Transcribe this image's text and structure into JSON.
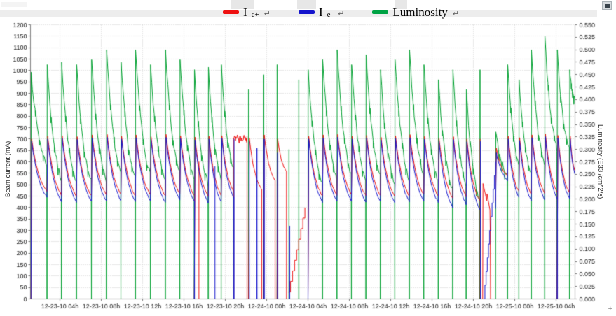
{
  "window": {
    "trailing_mark": "+"
  },
  "legend": {
    "return_mark": "↵",
    "items": [
      {
        "base": "I",
        "sub": "e+",
        "color": "#ee1111"
      },
      {
        "base": "I",
        "sub": "e-",
        "color": "#1414cc"
      },
      {
        "base": "Luminosity",
        "sub": "",
        "color": "#00a344"
      }
    ]
  },
  "chart_data": {
    "type": "line",
    "title": "",
    "grid": true,
    "legend_position": "top-center",
    "x_axis": {
      "label": "",
      "epoch": "12-23-10 00h",
      "domain_hours": [
        1.15,
        53.83
      ],
      "tick_hours": [
        4,
        8,
        12,
        16,
        20,
        24,
        28,
        32,
        36,
        40,
        44,
        48,
        52
      ],
      "tick_labels": [
        "12-23-10 04h",
        "12-23-10 08h",
        "12-23-10 12h",
        "12-23-10 16h",
        "12-23-10 20h",
        "12-24-10 00h",
        "12-24-10 04h",
        "12-24-10 08h",
        "12-24-10 12h",
        "12-24-10 16h",
        "12-24-10 20h",
        "12-25-10 00h",
        "12-25-10 04h"
      ]
    },
    "y_left": {
      "label": "Beam current (mA)",
      "min": 0,
      "max": 1200,
      "step": 50
    },
    "y_right": {
      "label": "Luminosity (E33 /cm^2/s)",
      "min": 0,
      "max": 0.55,
      "step": 0.025
    },
    "series": [
      {
        "key": "iep",
        "name": "I e+",
        "color": "#ee1111",
        "axis": "left"
      },
      {
        "key": "iem",
        "name": "I e-",
        "color": "#1414cc",
        "axis": "left"
      },
      {
        "key": "lum",
        "name": "Luminosity",
        "color": "#00a030",
        "axis": "right"
      }
    ],
    "fills": [
      {
        "t0": 1.2,
        "t1": 2.75,
        "lum": [
          0.455,
          0.27
        ],
        "iep": [
          700,
          470
        ],
        "iem": [
          690,
          445
        ]
      },
      {
        "t0": 2.75,
        "t1": 4.15,
        "lum": [
          0.47,
          0.24
        ],
        "iep": [
          712,
          455
        ],
        "iem": [
          700,
          428
        ]
      },
      {
        "t0": 4.15,
        "t1": 5.6,
        "lum": [
          0.475,
          0.23
        ],
        "iep": [
          715,
          450
        ],
        "iem": [
          703,
          425
        ]
      },
      {
        "t0": 5.6,
        "t1": 7.05,
        "lum": [
          0.47,
          0.235
        ],
        "iep": [
          710,
          452
        ],
        "iem": [
          698,
          427
        ]
      },
      {
        "t0": 7.05,
        "t1": 8.5,
        "lum": [
          0.48,
          0.24
        ],
        "iep": [
          718,
          455
        ],
        "iem": [
          705,
          430
        ]
      },
      {
        "t0": 8.5,
        "t1": 9.9,
        "lum": [
          0.5,
          0.25
        ],
        "iep": [
          720,
          460
        ],
        "iem": [
          708,
          432
        ]
      },
      {
        "t0": 9.9,
        "t1": 11.3,
        "lum": [
          0.475,
          0.24
        ],
        "iep": [
          712,
          452
        ],
        "iem": [
          700,
          426
        ]
      },
      {
        "t0": 11.3,
        "t1": 12.75,
        "lum": [
          0.5,
          0.25
        ],
        "iep": [
          718,
          458
        ],
        "iem": [
          706,
          430
        ]
      },
      {
        "t0": 12.75,
        "t1": 14.2,
        "lum": [
          0.47,
          0.235
        ],
        "iep": [
          710,
          450
        ],
        "iem": [
          698,
          424
        ]
      },
      {
        "t0": 14.2,
        "t1": 15.6,
        "lum": [
          0.5,
          0.25
        ],
        "iep": [
          720,
          460
        ],
        "iem": [
          707,
          433
        ]
      },
      {
        "t0": 15.6,
        "t1": 17.0,
        "lum": [
          0.48,
          0.24
        ],
        "iep": [
          714,
          454
        ],
        "iem": [
          702,
          428
        ]
      },
      {
        "t0": 17.0,
        "t1": 18.35,
        "lum": [
          0.46,
          0.23
        ],
        "iep": [
          708,
          448
        ],
        "iem": [
          696,
          422
        ],
        "izero": true
      },
      {
        "t0": 18.35,
        "t1": 19.6,
        "lum": [
          0.465,
          0.24
        ],
        "iep": [
          712,
          452
        ],
        "iem": [
          700,
          426
        ]
      },
      {
        "t0": 19.6,
        "t1": 20.8,
        "lum": [
          0.47,
          0.26
        ],
        "iep": [
          715,
          470
        ],
        "iem": [
          703,
          445
        ]
      },
      {
        "t0": 22.25,
        "t1": 23.5,
        "lum": null,
        "iep": [
          705,
          480
        ],
        "iem": null,
        "izero": true
      },
      {
        "t0": 23.7,
        "t1": 24.8,
        "lum": null,
        "iep": [
          718,
          520
        ],
        "iem": null,
        "izero": true
      },
      {
        "t0": 25.0,
        "t1": 25.9,
        "lum": null,
        "iep": [
          700,
          560
        ],
        "iem": null,
        "izero": true
      },
      {
        "t0": 28.0,
        "t1": 29.4,
        "lum": [
          0.46,
          0.23
        ],
        "iep": [
          712,
          450
        ],
        "iem": [
          700,
          424
        ],
        "izero": true
      },
      {
        "t0": 29.4,
        "t1": 30.8,
        "lum": [
          0.48,
          0.24
        ],
        "iep": [
          718,
          455
        ],
        "iem": [
          705,
          428
        ]
      },
      {
        "t0": 30.8,
        "t1": 32.2,
        "lum": [
          0.5,
          0.25
        ],
        "iep": [
          720,
          458
        ],
        "iem": [
          708,
          430
        ]
      },
      {
        "t0": 32.2,
        "t1": 33.6,
        "lum": [
          0.47,
          0.235
        ],
        "iep": [
          712,
          452
        ],
        "iem": [
          700,
          425
        ]
      },
      {
        "t0": 33.6,
        "t1": 35.0,
        "lum": [
          0.49,
          0.245
        ],
        "iep": [
          716,
          455
        ],
        "iem": [
          704,
          428
        ]
      },
      {
        "t0": 35.0,
        "t1": 36.4,
        "lum": [
          0.46,
          0.23
        ],
        "iep": [
          708,
          448
        ],
        "iem": [
          696,
          420
        ]
      },
      {
        "t0": 36.4,
        "t1": 37.8,
        "lum": [
          0.48,
          0.24
        ],
        "iep": [
          714,
          452
        ],
        "iem": [
          702,
          425
        ]
      },
      {
        "t0": 37.8,
        "t1": 39.2,
        "lum": [
          0.5,
          0.25
        ],
        "iep": [
          719,
          458
        ],
        "iem": [
          706,
          428
        ]
      },
      {
        "t0": 39.2,
        "t1": 40.6,
        "lum": [
          0.47,
          0.235
        ],
        "iep": [
          711,
          450
        ],
        "iem": [
          699,
          422
        ]
      },
      {
        "t0": 40.6,
        "t1": 42.0,
        "lum": [
          0.44,
          0.22
        ],
        "iep": [
          705,
          442
        ],
        "iem": [
          693,
          400
        ]
      },
      {
        "t0": 42.0,
        "t1": 43.3,
        "lum": [
          0.46,
          0.23
        ],
        "iep": [
          710,
          448
        ],
        "iem": [
          698,
          415
        ]
      },
      {
        "t0": 43.3,
        "t1": 44.6,
        "lum": [
          0.42,
          0.2
        ],
        "iep": [
          700,
          430
        ],
        "iem": [
          688,
          395
        ]
      },
      {
        "t0": 46.15,
        "t1": 47.3,
        "lum": [
          0.335,
          0.25
        ],
        "iep": [
          660,
          540
        ],
        "iem": [
          640,
          520
        ]
      },
      {
        "t0": 47.3,
        "t1": 48.4,
        "lum": [
          0.47,
          0.27
        ],
        "iep": [
          712,
          470
        ],
        "iem": [
          700,
          445
        ]
      },
      {
        "t0": 48.4,
        "t1": 49.6,
        "lum": [
          0.44,
          0.25
        ],
        "iep": [
          706,
          460
        ],
        "iem": [
          694,
          430
        ]
      },
      {
        "t0": 49.6,
        "t1": 50.9,
        "lum": [
          0.5,
          0.27
        ],
        "iep": [
          718,
          462
        ],
        "iem": [
          706,
          435
        ]
      },
      {
        "t0": 50.9,
        "t1": 52.1,
        "lum": [
          0.527,
          0.3
        ],
        "iep": [
          722,
          470
        ],
        "iem": [
          710,
          440
        ]
      },
      {
        "t0": 52.1,
        "t1": 53.3,
        "lum": [
          0.5,
          0.3
        ],
        "iep": [
          716,
          465
        ],
        "iem": [
          704,
          438
        ],
        "izero": true
      },
      {
        "t0": 53.3,
        "t1": 53.83,
        "lum": [
          0.46,
          0.4
        ],
        "iep": [
          712,
          560
        ],
        "iem": [
          700,
          548
        ],
        "open": true
      }
    ],
    "extras": [
      {
        "type": "vline",
        "series": "iep",
        "t": 17.45,
        "v0": 0,
        "v1": 600
      },
      {
        "type": "vline",
        "series": "iem",
        "t": 19.0,
        "v0": 0,
        "v1": 580
      },
      {
        "type": "hold",
        "series": "iep",
        "t0": 20.8,
        "t1": 22.1,
        "v": 700,
        "v0": 470,
        "noise": 18
      },
      {
        "type": "vline",
        "series": "iep",
        "t": 22.1,
        "v0": 0,
        "v1": 712
      },
      {
        "type": "vline",
        "series": "iem",
        "t": 20.85,
        "v0": 0,
        "v1": 700
      },
      {
        "type": "spike",
        "series": "lum",
        "t": 22.25,
        "v": 0.42
      },
      {
        "type": "spike",
        "series": "lum",
        "t": 23.7,
        "v": 0.45
      },
      {
        "type": "spike",
        "series": "lum",
        "t": 25.0,
        "v": 0.47
      },
      {
        "type": "spike",
        "series": "lum",
        "t": 26.15,
        "v": 0.3
      },
      {
        "type": "spike",
        "series": "lum",
        "t": 27.1,
        "v": 0.44
      },
      {
        "type": "spike",
        "series": "iem",
        "t": 22.3,
        "v": 690
      },
      {
        "type": "spike",
        "series": "iem",
        "t": 23.05,
        "v": 660
      },
      {
        "type": "spike",
        "series": "iem",
        "t": 23.75,
        "v": 700
      },
      {
        "type": "spike",
        "series": "iem",
        "t": 25.05,
        "v": 640
      },
      {
        "type": "spike",
        "series": "iem",
        "t": 26.2,
        "v": 320
      },
      {
        "type": "ramp",
        "series": "iep",
        "t0": 26.1,
        "t1": 27.7,
        "v0": 30,
        "v1": 400,
        "steps": 8
      },
      {
        "type": "vline",
        "series": "iep",
        "t": 44.65,
        "v0": 0,
        "v1": 700
      },
      {
        "type": "vline",
        "series": "iem",
        "t": 44.68,
        "v0": 0,
        "v1": 690
      },
      {
        "type": "polyline",
        "series": "iep",
        "pts": [
          [
            44.9,
            0
          ],
          [
            44.93,
            505
          ],
          [
            45.3,
            430
          ],
          [
            45.32,
            460
          ],
          [
            45.6,
            390
          ],
          [
            45.63,
            300
          ],
          [
            45.66,
            0
          ]
        ]
      },
      {
        "type": "ramp",
        "series": "iem",
        "t0": 45.0,
        "t1": 46.15,
        "v0": 0,
        "v1": 600,
        "steps": 10
      },
      {
        "type": "spike",
        "series": "lum",
        "t": 44.63,
        "v": 0.46
      }
    ]
  }
}
